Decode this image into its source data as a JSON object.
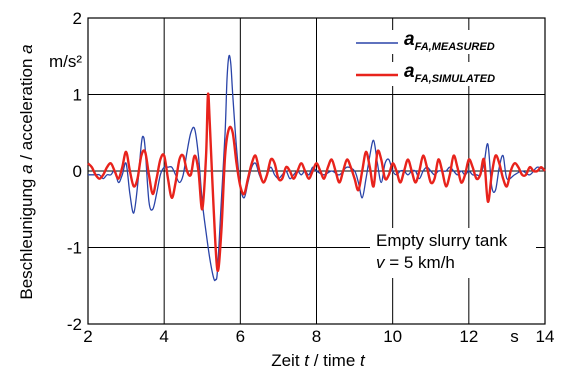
{
  "chart_data": {
    "type": "line",
    "xlabel_parts": [
      "Zeit ",
      "t",
      " / time ",
      "t"
    ],
    "ylabel_parts": [
      "Beschleunigung ",
      "a",
      " / acceleration ",
      "a"
    ],
    "x_unit": "s",
    "y_unit": "m/s²",
    "xlim": [
      2,
      14
    ],
    "ylim": [
      -2,
      2
    ],
    "xticks": [
      "2",
      "4",
      "6",
      "8",
      "10",
      "12",
      "14"
    ],
    "yticks": [
      "-2",
      "-1",
      "0",
      "1",
      "2"
    ],
    "grid": true,
    "legend_position": "top-right",
    "annotation": {
      "line1": "Empty slurry tank",
      "line2_var": "v",
      "line2_rest": " = 5 km/h"
    },
    "series": [
      {
        "name": "a",
        "name_sub": "FA,MEASURED",
        "color": "#2a44a8",
        "x": [
          2.0,
          2.1,
          2.2,
          2.3,
          2.4,
          2.5,
          2.6,
          2.7,
          2.8,
          2.9,
          3.0,
          3.1,
          3.2,
          3.3,
          3.4,
          3.45,
          3.5,
          3.6,
          3.7,
          3.8,
          3.9,
          4.0,
          4.1,
          4.2,
          4.3,
          4.4,
          4.5,
          4.6,
          4.7,
          4.8,
          4.9,
          5.0,
          5.1,
          5.2,
          5.3,
          5.35,
          5.4,
          5.5,
          5.6,
          5.65,
          5.7,
          5.75,
          5.8,
          5.9,
          6.0,
          6.1,
          6.2,
          6.3,
          6.4,
          6.5,
          6.6,
          6.7,
          6.8,
          6.9,
          7.0,
          7.1,
          7.2,
          7.3,
          7.4,
          7.5,
          7.6,
          7.7,
          7.8,
          7.9,
          8.0,
          8.2,
          8.4,
          8.6,
          8.8,
          9.0,
          9.1,
          9.2,
          9.3,
          9.4,
          9.5,
          9.6,
          9.7,
          9.8,
          9.9,
          10.0,
          10.1,
          10.2,
          10.3,
          10.4,
          10.5,
          10.6,
          10.7,
          10.8,
          10.9,
          11.0,
          11.1,
          11.2,
          11.3,
          11.4,
          11.5,
          11.6,
          11.7,
          11.8,
          11.9,
          12.0,
          12.1,
          12.2,
          12.3,
          12.4,
          12.5,
          12.6,
          12.7,
          12.8,
          12.9,
          13.0,
          13.2,
          13.4,
          13.6,
          13.8,
          14.0
        ],
        "y": [
          -0.05,
          -0.05,
          -0.05,
          -0.05,
          -0.1,
          -0.05,
          -0.05,
          0.0,
          -0.15,
          -0.05,
          0.1,
          -0.3,
          -0.55,
          -0.2,
          0.35,
          0.45,
          0.3,
          -0.4,
          -0.5,
          -0.3,
          -0.05,
          0.05,
          0.05,
          0.05,
          -0.05,
          -0.15,
          -0.05,
          0.25,
          0.5,
          0.55,
          0.2,
          -0.4,
          -0.8,
          -1.15,
          -1.4,
          -1.42,
          -1.3,
          -0.4,
          0.5,
          1.2,
          1.5,
          1.4,
          1.0,
          0.3,
          -0.2,
          -0.35,
          -0.15,
          0.05,
          0.1,
          -0.05,
          -0.15,
          -0.05,
          0.05,
          -0.05,
          -0.1,
          -0.05,
          0.0,
          -0.1,
          -0.05,
          0.0,
          -0.05,
          0.0,
          -0.05,
          0.05,
          0.0,
          -0.05,
          0.0,
          -0.05,
          0.05,
          0.0,
          -0.15,
          -0.35,
          -0.1,
          0.2,
          0.4,
          0.1,
          -0.15,
          0.1,
          0.15,
          0.0,
          -0.05,
          0.0,
          0.0,
          -0.05,
          0.0,
          0.0,
          -0.1,
          0.0,
          0.05,
          0.0,
          -0.05,
          0.0,
          0.0,
          0.0,
          0.05,
          0.0,
          -0.05,
          0.0,
          -0.05,
          0.0,
          -0.05,
          -0.05,
          -0.05,
          0.1,
          0.35,
          -0.2,
          -0.25,
          0.05,
          0.2,
          -0.1,
          -0.05,
          0.0,
          -0.05,
          0.05,
          0.0
        ]
      },
      {
        "name": "a",
        "name_sub": "FA,SIMULATED",
        "color": "#e8231c",
        "x": [
          2.0,
          2.1,
          2.2,
          2.3,
          2.4,
          2.5,
          2.6,
          2.7,
          2.8,
          2.9,
          3.0,
          3.1,
          3.2,
          3.3,
          3.4,
          3.5,
          3.6,
          3.7,
          3.8,
          3.9,
          4.0,
          4.1,
          4.2,
          4.3,
          4.4,
          4.5,
          4.6,
          4.7,
          4.8,
          4.9,
          5.0,
          5.1,
          5.15,
          5.2,
          5.3,
          5.4,
          5.5,
          5.6,
          5.7,
          5.8,
          5.9,
          6.0,
          6.1,
          6.2,
          6.3,
          6.4,
          6.5,
          6.6,
          6.7,
          6.8,
          6.9,
          7.0,
          7.1,
          7.2,
          7.3,
          7.4,
          7.5,
          7.6,
          7.7,
          7.8,
          7.9,
          8.0,
          8.1,
          8.2,
          8.3,
          8.4,
          8.5,
          8.6,
          8.7,
          8.8,
          8.9,
          9.0,
          9.1,
          9.2,
          9.3,
          9.4,
          9.5,
          9.6,
          9.7,
          9.8,
          9.9,
          10.0,
          10.1,
          10.2,
          10.3,
          10.4,
          10.5,
          10.6,
          10.7,
          10.8,
          10.9,
          11.0,
          11.1,
          11.2,
          11.3,
          11.4,
          11.5,
          11.6,
          11.7,
          11.8,
          11.9,
          12.0,
          12.1,
          12.2,
          12.3,
          12.4,
          12.5,
          12.6,
          12.7,
          12.8,
          12.9,
          13.0,
          13.1,
          13.2,
          13.3,
          13.4,
          13.5,
          13.6,
          13.7,
          13.8,
          13.9,
          14.0
        ],
        "y": [
          0.1,
          0.05,
          -0.05,
          -0.1,
          -0.05,
          0.05,
          0.1,
          0.0,
          -0.1,
          0.05,
          0.25,
          0.0,
          -0.2,
          -0.1,
          0.2,
          0.25,
          -0.05,
          -0.3,
          -0.1,
          0.15,
          0.2,
          -0.1,
          -0.35,
          -0.15,
          0.15,
          0.2,
          0.0,
          -0.05,
          0.2,
          0.0,
          -0.5,
          0.2,
          1.0,
          0.6,
          -0.5,
          -1.3,
          -0.8,
          0.2,
          0.55,
          0.5,
          0.1,
          -0.2,
          -0.3,
          -0.1,
          0.1,
          0.2,
          0.0,
          -0.15,
          -0.05,
          0.15,
          0.1,
          -0.1,
          -0.1,
          0.05,
          0.0,
          -0.1,
          0.0,
          0.1,
          0.0,
          -0.1,
          0.0,
          0.1,
          0.0,
          -0.1,
          0.05,
          0.15,
          0.0,
          -0.15,
          0.0,
          0.15,
          0.05,
          -0.1,
          -0.25,
          0.0,
          0.25,
          0.05,
          -0.2,
          0.25,
          0.15,
          -0.1,
          -0.05,
          0.1,
          0.0,
          -0.15,
          0.0,
          0.15,
          0.0,
          -0.15,
          0.0,
          0.2,
          0.05,
          -0.15,
          -0.1,
          0.15,
          0.0,
          -0.2,
          -0.05,
          0.2,
          0.05,
          -0.15,
          -0.05,
          0.15,
          0.05,
          -0.1,
          -0.05,
          0.15,
          -0.4,
          -0.05,
          0.2,
          0.1,
          -0.1,
          -0.2,
          0.0,
          0.1,
          0.05,
          -0.05,
          -0.05,
          0.05,
          0.0,
          0.0,
          0.05,
          0.0
        ]
      }
    ]
  }
}
